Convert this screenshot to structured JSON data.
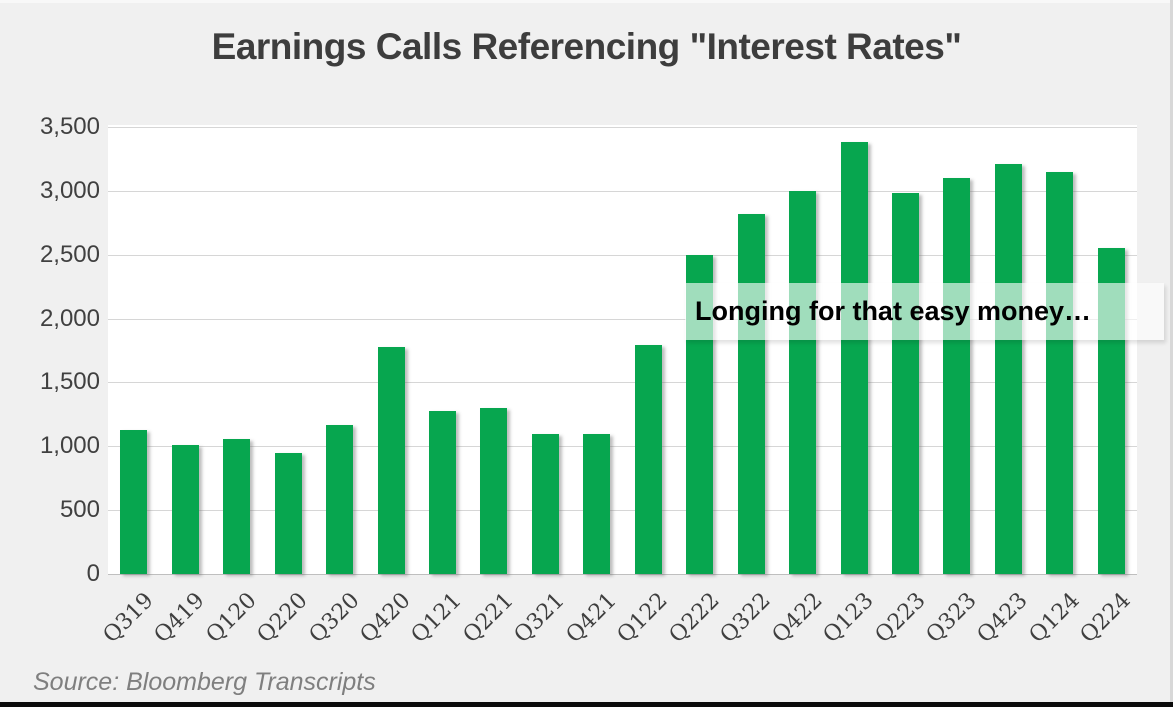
{
  "title": "Earnings Calls Referencing \"Interest Rates\"",
  "annotation": {
    "text": "Longing for that easy money…"
  },
  "source": "Source: Bloomberg Transcripts",
  "colors": {
    "bar": "#07a64f",
    "background": "#f0f0f0",
    "plot_background": "#ffffff",
    "gridline": "#d6d6d6",
    "title_text": "#3d3d3d",
    "axis_text": "#404040",
    "annotation_background": "rgba(255,255,255,0.62)",
    "annotation_text": "#000000",
    "source_text": "#7f7f7f"
  },
  "chart_data": {
    "type": "bar",
    "title": "Earnings Calls Referencing \"Interest Rates\"",
    "categories": [
      "Q319",
      "Q419",
      "Q120",
      "Q220",
      "Q320",
      "Q420",
      "Q121",
      "Q221",
      "Q321",
      "Q421",
      "Q122",
      "Q222",
      "Q322",
      "Q422",
      "Q123",
      "Q223",
      "Q323",
      "Q423",
      "Q124",
      "Q224"
    ],
    "values": [
      1130,
      1010,
      1060,
      950,
      1170,
      1780,
      1280,
      1300,
      1100,
      1100,
      1790,
      2500,
      2820,
      3000,
      3380,
      2980,
      3100,
      3210,
      3150,
      2550
    ],
    "xlabel": "",
    "ylabel": "",
    "ylim": [
      0,
      3500
    ],
    "yticks": [
      0,
      500,
      1000,
      1500,
      2000,
      2500,
      3000,
      3500
    ],
    "ytick_labels": [
      "0",
      "500",
      "1,000",
      "1,500",
      "2,000",
      "2,500",
      "3,000",
      "3,500"
    ],
    "grid": true,
    "legend": false,
    "annotation": "Longing for that easy money…",
    "source": "Source: Bloomberg Transcripts"
  }
}
